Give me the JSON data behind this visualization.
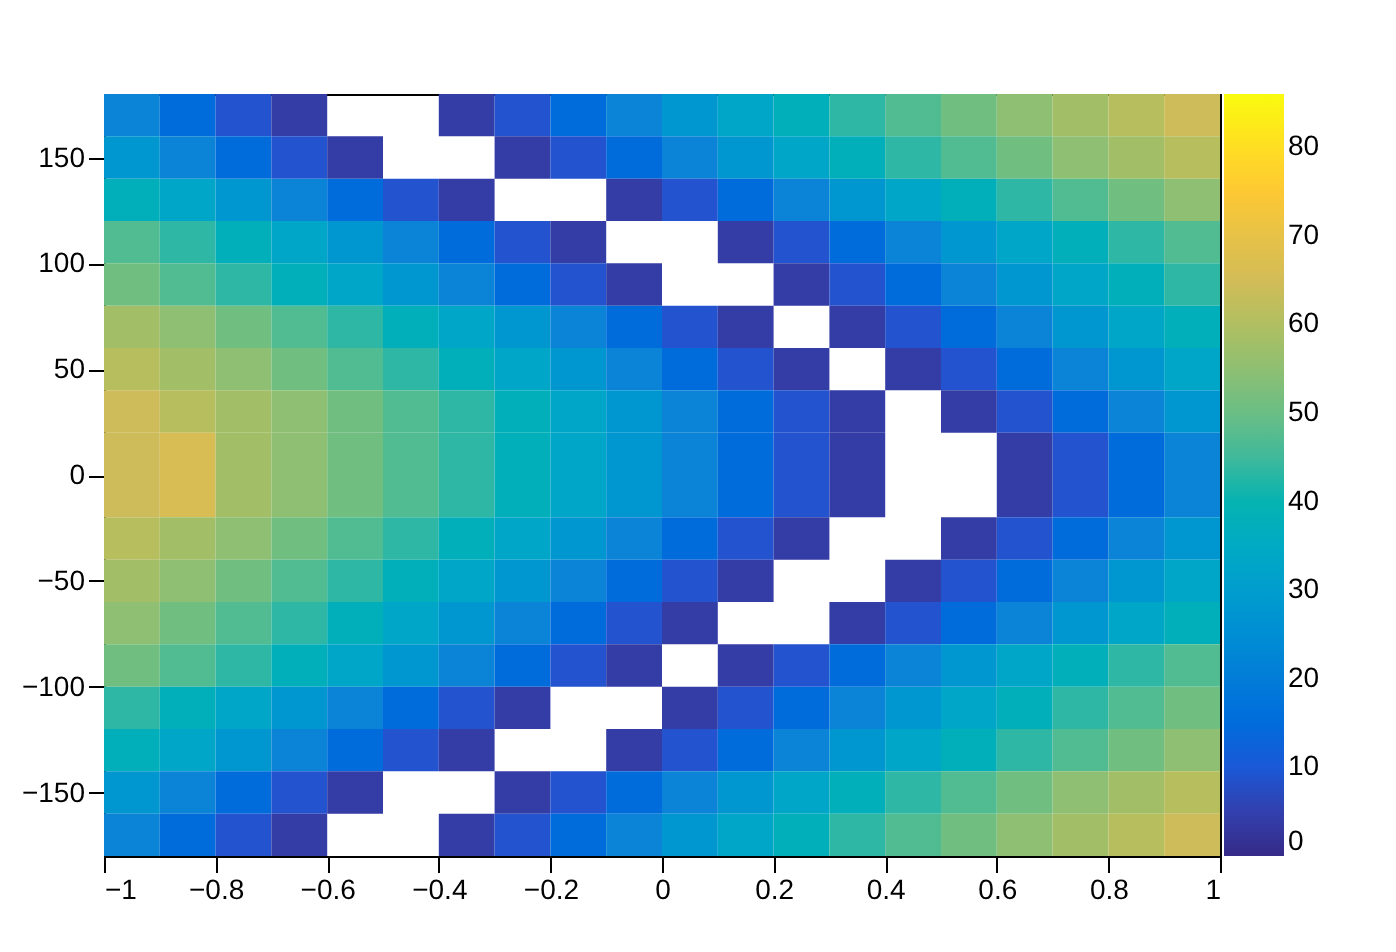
{
  "chart_data": {
    "type": "heatmap",
    "x": [
      -0.95,
      -0.85,
      -0.75,
      -0.65,
      -0.55,
      -0.45,
      -0.35,
      -0.25,
      -0.15,
      -0.05,
      0.05,
      0.15,
      0.25,
      0.35,
      0.45,
      0.55,
      0.65,
      0.75,
      0.85,
      0.95
    ],
    "y": [
      170,
      150,
      130,
      110,
      90,
      70,
      50,
      30,
      10,
      -10,
      -30,
      -50,
      -70,
      -90,
      -110,
      -130,
      -150,
      -170
    ],
    "cells": [
      [
        22,
        15,
        9,
        4,
        null,
        null,
        4,
        9,
        15,
        22,
        28,
        33,
        38,
        43,
        47,
        51,
        55,
        58,
        61,
        64
      ],
      [
        28,
        22,
        15,
        9,
        4,
        null,
        null,
        4,
        9,
        15,
        22,
        28,
        33,
        38,
        43,
        47,
        51,
        55,
        58,
        61
      ],
      [
        38,
        33,
        28,
        22,
        15,
        9,
        4,
        null,
        null,
        4,
        9,
        15,
        22,
        28,
        33,
        38,
        43,
        47,
        51,
        55
      ],
      [
        47,
        43,
        38,
        33,
        28,
        22,
        15,
        9,
        4,
        null,
        null,
        4,
        9,
        15,
        22,
        28,
        33,
        38,
        43,
        47
      ],
      [
        51,
        47,
        43,
        38,
        33,
        28,
        22,
        15,
        9,
        4,
        null,
        null,
        4,
        9,
        15,
        22,
        28,
        33,
        38,
        43
      ],
      [
        58,
        55,
        51,
        47,
        43,
        38,
        33,
        28,
        22,
        15,
        9,
        4,
        null,
        4,
        9,
        15,
        22,
        28,
        33,
        38
      ],
      [
        61,
        58,
        55,
        51,
        47,
        43,
        38,
        33,
        28,
        22,
        15,
        9,
        4,
        null,
        4,
        9,
        15,
        22,
        28,
        33
      ],
      [
        64,
        61,
        58,
        55,
        51,
        47,
        43,
        38,
        33,
        28,
        22,
        15,
        9,
        4,
        null,
        4,
        9,
        15,
        22,
        28
      ],
      [
        64,
        66,
        58,
        55,
        51,
        47,
        43,
        38,
        33,
        28,
        22,
        15,
        9,
        4,
        null,
        null,
        4,
        9,
        15,
        22
      ],
      [
        64,
        66,
        58,
        55,
        51,
        47,
        43,
        38,
        33,
        28,
        22,
        15,
        9,
        4,
        null,
        null,
        4,
        9,
        15,
        22
      ],
      [
        61,
        58,
        55,
        51,
        47,
        43,
        38,
        33,
        28,
        22,
        15,
        9,
        4,
        null,
        null,
        4,
        9,
        15,
        22,
        28
      ],
      [
        58,
        55,
        51,
        47,
        43,
        38,
        33,
        28,
        22,
        15,
        9,
        4,
        null,
        null,
        4,
        9,
        15,
        22,
        28,
        33
      ],
      [
        55,
        51,
        47,
        43,
        38,
        33,
        28,
        22,
        15,
        9,
        4,
        null,
        null,
        4,
        9,
        15,
        22,
        28,
        33,
        38
      ],
      [
        51,
        47,
        43,
        38,
        33,
        28,
        22,
        15,
        9,
        4,
        null,
        4,
        9,
        15,
        22,
        28,
        33,
        38,
        43,
        47
      ],
      [
        43,
        38,
        33,
        28,
        22,
        15,
        9,
        4,
        null,
        null,
        4,
        9,
        15,
        22,
        28,
        33,
        38,
        43,
        47,
        51
      ],
      [
        38,
        33,
        28,
        22,
        15,
        9,
        4,
        null,
        null,
        4,
        9,
        15,
        22,
        28,
        33,
        38,
        43,
        47,
        51,
        55
      ],
      [
        28,
        22,
        15,
        9,
        4,
        null,
        null,
        4,
        9,
        15,
        22,
        28,
        33,
        38,
        43,
        47,
        51,
        55,
        58,
        61
      ],
      [
        22,
        15,
        9,
        4,
        null,
        null,
        4,
        9,
        15,
        22,
        28,
        33,
        38,
        43,
        47,
        51,
        55,
        58,
        61,
        64
      ]
    ],
    "xlim": [
      -1,
      1
    ],
    "xticks": [
      {
        "value": -1,
        "label": "−1"
      },
      {
        "value": -0.8,
        "label": "−0.8"
      },
      {
        "value": -0.6,
        "label": "−0.6"
      },
      {
        "value": -0.4,
        "label": "−0.4"
      },
      {
        "value": -0.2,
        "label": "−0.2"
      },
      {
        "value": 0,
        "label": "0"
      },
      0.2,
      0.4,
      0.6,
      0.8,
      {
        "value": 1,
        "label": "1"
      }
    ],
    "ylim": [
      -180,
      180
    ],
    "yticks": [
      {
        "value": -150,
        "label": "−150"
      },
      {
        "value": -100,
        "label": "−100"
      },
      {
        "value": -50,
        "label": "−50"
      },
      {
        "value": 0,
        "label": "0"
      },
      50,
      100,
      150
    ],
    "clim": [
      0,
      86
    ],
    "cticks": [
      0,
      10,
      20,
      30,
      40,
      50,
      60,
      70,
      80
    ],
    "grid": false
  }
}
